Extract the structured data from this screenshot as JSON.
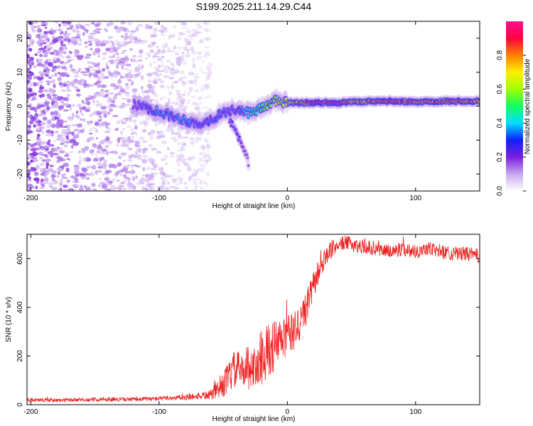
{
  "title": "S199.2025.211.14.29.C44",
  "chart_data": [
    {
      "type": "heatmap",
      "xlabel": "Height of straight line (km)",
      "ylabel": "Frequency (Hz)",
      "xlim": [
        -203,
        150
      ],
      "ylim": [
        -25,
        25
      ],
      "xticks": [
        -200,
        -100,
        0,
        100
      ],
      "yticks": [
        -20,
        -10,
        0,
        10,
        20
      ],
      "grid": false,
      "colorbar": {
        "label": "Normalized spectral amplitude",
        "range": [
          0,
          1
        ],
        "ticks": [
          0.0,
          0.2,
          0.4,
          0.6,
          0.8
        ],
        "colors": [
          "#ffffff",
          "#c8a8ee",
          "#7a1fe0",
          "#1020ff",
          "#00e0ff",
          "#10ff60",
          "#a0ff00",
          "#ffee00",
          "#ff8000",
          "#ff0040",
          "#ff1090"
        ]
      },
      "noise_region": {
        "x": [
          -203,
          -60
        ],
        "y": [
          -25,
          25
        ],
        "amplitude": [
          0.05,
          0.2
        ]
      },
      "ridge": [
        {
          "x": -120,
          "y": 0.5,
          "amp": 0.25
        },
        {
          "x": -110,
          "y": -0.5,
          "amp": 0.3
        },
        {
          "x": -100,
          "y": -1.5,
          "amp": 0.35
        },
        {
          "x": -90,
          "y": -3,
          "amp": 0.35
        },
        {
          "x": -80,
          "y": -4,
          "amp": 0.35
        },
        {
          "x": -70,
          "y": -5.5,
          "amp": 0.3
        },
        {
          "x": -60,
          "y": -4,
          "amp": 0.3
        },
        {
          "x": -50,
          "y": -2,
          "amp": 0.3
        },
        {
          "x": -40,
          "y": -1,
          "amp": 0.3
        },
        {
          "x": -30,
          "y": -2,
          "amp": 0.4
        },
        {
          "x": -20,
          "y": -0.5,
          "amp": 0.5
        },
        {
          "x": -10,
          "y": 1.5,
          "amp": 0.6
        },
        {
          "x": 0,
          "y": 1,
          "amp": 0.65
        },
        {
          "x": 10,
          "y": 1,
          "amp": 0.85
        },
        {
          "x": 40,
          "y": 1,
          "amp": 0.9
        },
        {
          "x": 60,
          "y": 1.3,
          "amp": 0.75
        },
        {
          "x": 80,
          "y": 1.5,
          "amp": 0.9
        },
        {
          "x": 100,
          "y": 1.2,
          "amp": 0.8
        },
        {
          "x": 120,
          "y": 1.5,
          "amp": 0.85
        },
        {
          "x": 150,
          "y": 1.5,
          "amp": 0.8
        }
      ],
      "branch": [
        {
          "x": -45,
          "y": -4,
          "amp": 0.25
        },
        {
          "x": -38,
          "y": -9,
          "amp": 0.25
        },
        {
          "x": -33,
          "y": -14,
          "amp": 0.2
        },
        {
          "x": -30,
          "y": -17,
          "amp": 0.15
        }
      ]
    },
    {
      "type": "line",
      "xlabel": "Height of straight line (km)",
      "ylabel": "SNR (10 * v/v)",
      "xlim": [
        -203,
        150
      ],
      "ylim": [
        0,
        700
      ],
      "xticks": [
        -200,
        -100,
        0,
        100
      ],
      "yticks": [
        0,
        200,
        400,
        600
      ],
      "grid": false,
      "series": [
        {
          "color": "#ee2222",
          "x": [
            -203,
            -180,
            -160,
            -140,
            -120,
            -100,
            -90,
            -80,
            -70,
            -60,
            -55,
            -50,
            -45,
            -40,
            -35,
            -30,
            -25,
            -20,
            -15,
            -10,
            -5,
            0,
            5,
            10,
            15,
            20,
            25,
            30,
            35,
            40,
            45,
            50,
            55,
            60,
            70,
            80,
            90,
            100,
            110,
            120,
            130,
            140,
            150
          ],
          "y": [
            20,
            18,
            20,
            22,
            22,
            25,
            28,
            30,
            35,
            40,
            60,
            80,
            120,
            150,
            140,
            160,
            150,
            200,
            220,
            240,
            260,
            280,
            300,
            340,
            400,
            480,
            560,
            600,
            640,
            660,
            665,
            660,
            650,
            650,
            640,
            630,
            640,
            630,
            640,
            630,
            620,
            620,
            610
          ],
          "noise": [
            8,
            8,
            8,
            8,
            8,
            9,
            10,
            12,
            14,
            20,
            40,
            50,
            70,
            80,
            60,
            100,
            80,
            120,
            110,
            110,
            100,
            90,
            80,
            80,
            70,
            60,
            50,
            40,
            35,
            30,
            30,
            30,
            30,
            30,
            30,
            30,
            30,
            30,
            30,
            30,
            30,
            30,
            30
          ]
        }
      ]
    }
  ]
}
